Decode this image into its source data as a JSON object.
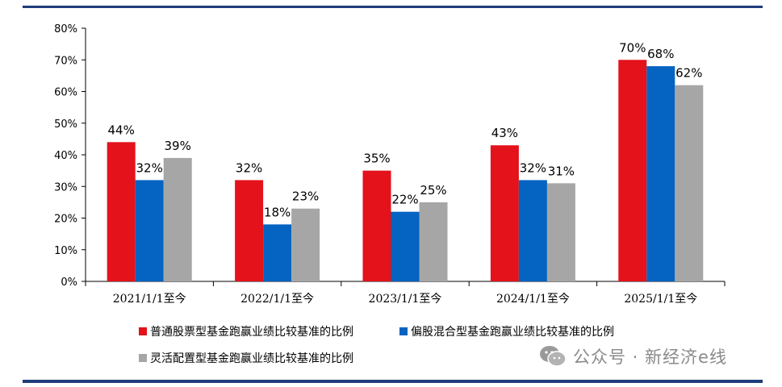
{
  "chart_data": {
    "type": "bar",
    "categories": [
      "2021/1/1至今",
      "2022/1/1至今",
      "2023/1/1至今",
      "2024/1/1至今",
      "2025/1/1至今"
    ],
    "series": [
      {
        "name": "普通股票型基金跑赢业绩比较基准的比例",
        "color": "#e3121b",
        "values": [
          44,
          32,
          35,
          43,
          70
        ],
        "labels": [
          "44%",
          "32%",
          "35%",
          "43%",
          "70%"
        ]
      },
      {
        "name": "偏股混合型基金跑赢业绩比较基准的比例",
        "color": "#0563c1",
        "values": [
          32,
          18,
          22,
          32,
          68
        ],
        "labels": [
          "32%",
          "18%",
          "22%",
          "32%",
          "68%"
        ]
      },
      {
        "name": "灵活配置型基金跑赢业绩比较基准的比例",
        "color": "#a6a6a6",
        "values": [
          39,
          23,
          25,
          31,
          62
        ],
        "labels": [
          "39%",
          "23%",
          "25%",
          "31%",
          "62%"
        ]
      }
    ],
    "yticks": [
      "0%",
      "10%",
      "20%",
      "30%",
      "40%",
      "50%",
      "60%",
      "70%",
      "80%"
    ],
    "ylim": [
      0,
      80
    ],
    "grid": false,
    "legend_position": "bottom-left"
  },
  "watermark": {
    "text": "公众号 · 新经济e线",
    "icon": "wechat-icon"
  }
}
